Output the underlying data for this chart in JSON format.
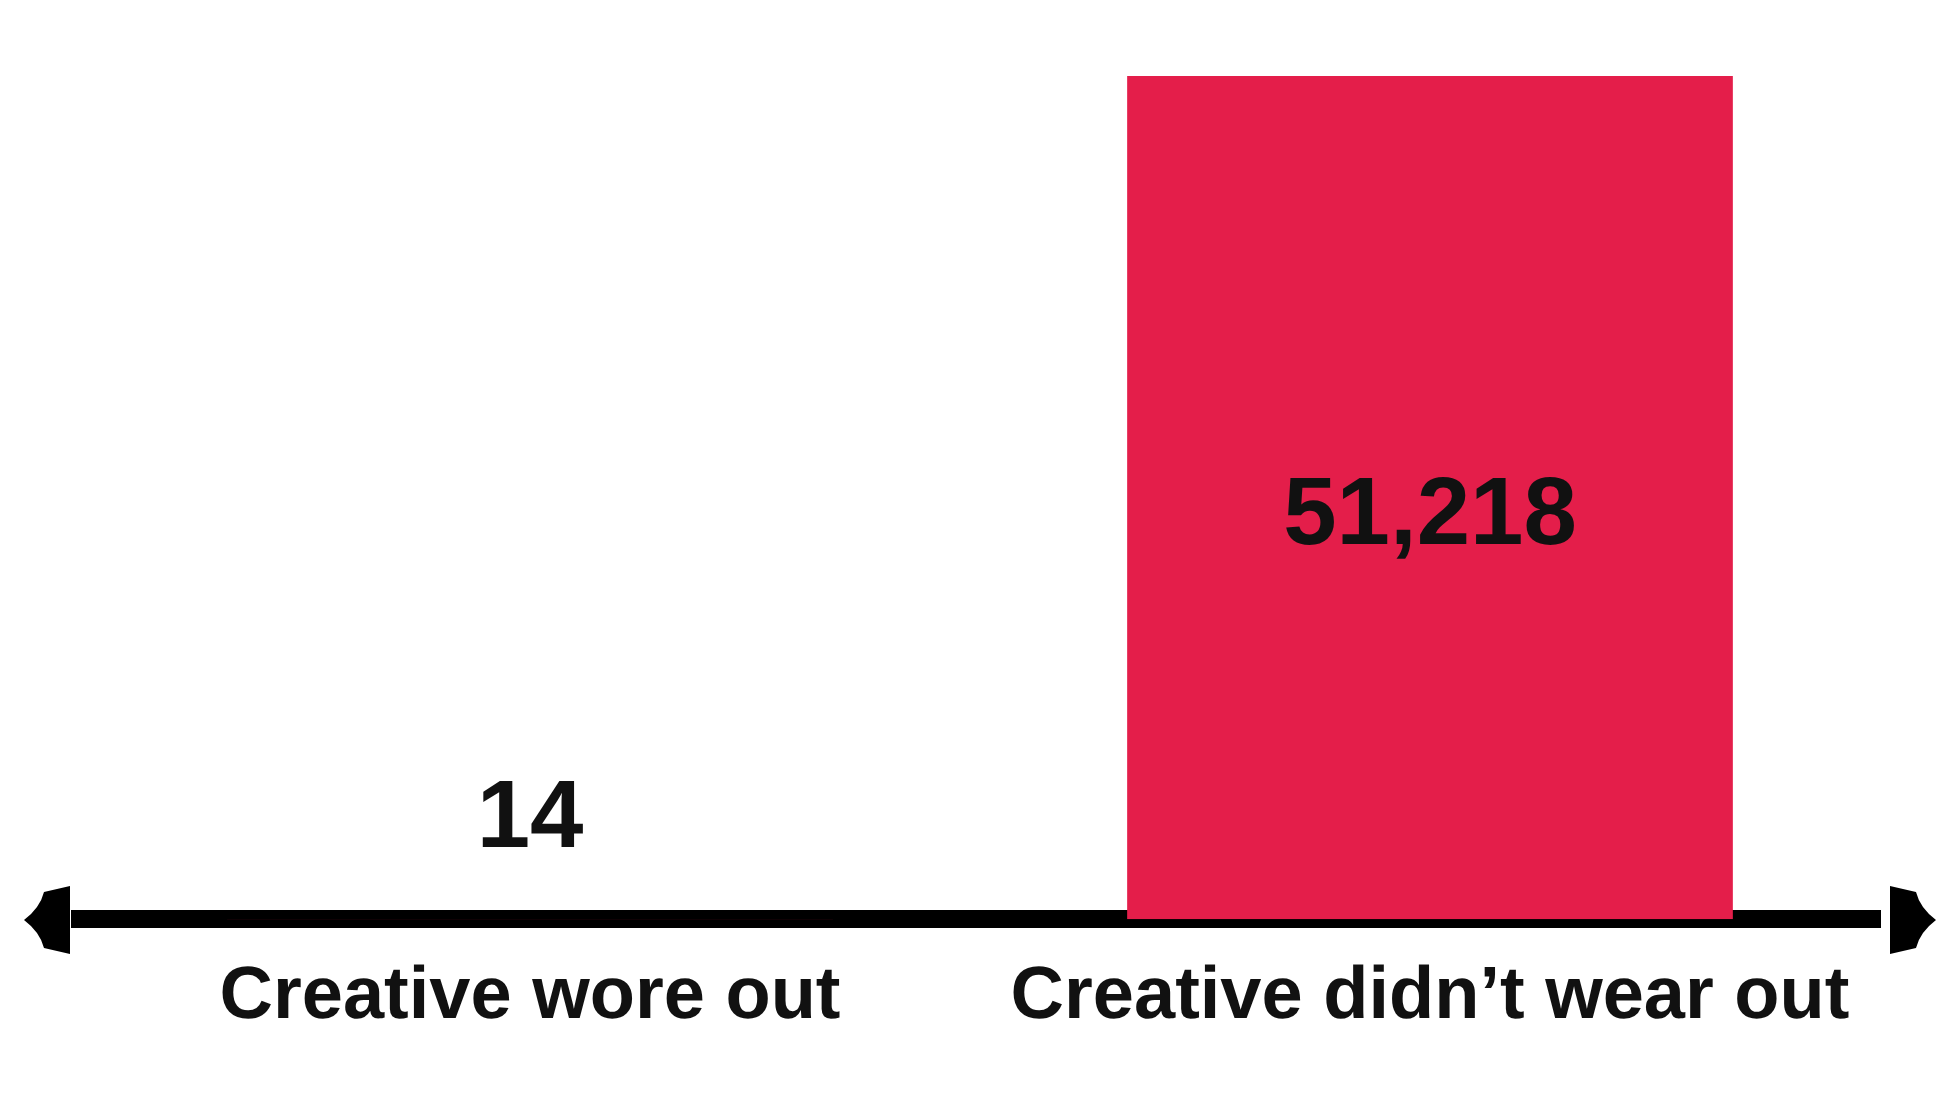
{
  "chart_data": {
    "type": "bar",
    "categories": [
      "Creative wore out",
      "Creative didn’t wear out"
    ],
    "values": [
      14,
      51218
    ],
    "color": "#e41e4a",
    "value_labels": [
      "14",
      "51,218"
    ],
    "ylim": [
      0,
      51218
    ],
    "tick_labels": "x",
    "grid": false,
    "legend": false
  }
}
